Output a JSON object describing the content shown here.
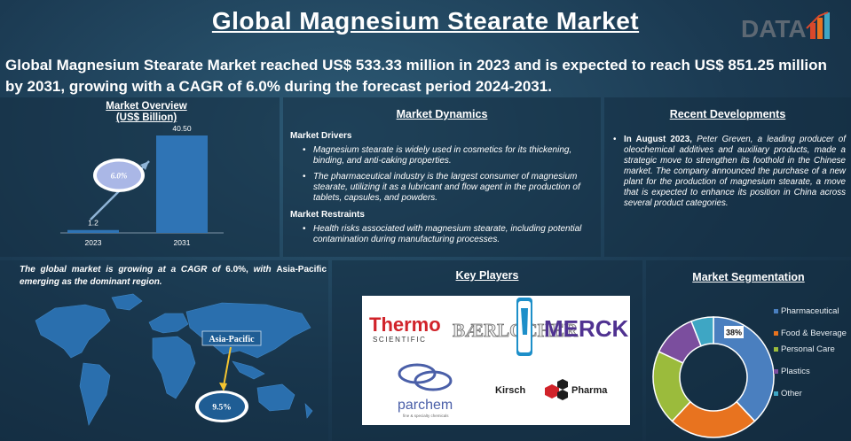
{
  "title": "Global Magnesium Stearate Market",
  "logo": {
    "text": "DATA"
  },
  "subtitle": "Global Magnesium Stearate Market reached US$ 533.33 million in 2023 and is expected to reach US$ 851.25 million by 2031, growing with a CAGR of 6.0% during the forecast period 2024-2031.",
  "overview": {
    "title_line1": "Market Overview",
    "title_line2": "(US$ Billion)",
    "cagr_badge": "6.0%",
    "chart_data": {
      "type": "bar",
      "categories": [
        "2023",
        "2031"
      ],
      "values": [
        1.2,
        40.5
      ],
      "value_labels": [
        "1.2",
        "40.50"
      ]
    }
  },
  "dynamics": {
    "title": "Market Dynamics",
    "drivers_heading": "Market Drivers",
    "drivers": [
      "Magnesium stearate is widely used in cosmetics for its thickening, binding, and anti-caking properties.",
      "The pharmaceutical industry is the largest consumer of magnesium stearate, utilizing it as a lubricant and flow agent in the production of tablets, capsules, and powders."
    ],
    "restraints_heading": "Market Restraints",
    "restraints": [
      "Health risks associated with magnesium stearate, including potential contamination during manufacturing processes."
    ]
  },
  "recent": {
    "title": "Recent Developments",
    "item_bold": "In August 2023,",
    "item_company": "Peter Greven,",
    "item_text": "a leading producer of oleochemical additives and auxiliary products, made a strategic move to strengthen its foothold in the Chinese market. The company announced the purchase of a new plant for the production of magnesium stearate, a move that is expected to enhance its position in China across several product categories."
  },
  "map": {
    "text_pre": "The global market is growing at a CAGR of",
    "text_cagr": "6.0%,",
    "text_mid": "with",
    "text_region": "Asia-Pacific",
    "text_post": "emerging as the dominant region.",
    "region_label": "Asia-Pacific",
    "region_value": "9.5%"
  },
  "players": {
    "title": "Key Players",
    "logos": {
      "thermo_1": "Thermo",
      "thermo_2": "SCIENTIFIC",
      "baerlocher": "BÆRLOCHER",
      "merck": "MERCK",
      "parchem": "parchem",
      "parchem_sub": "fine & specialty chemicals",
      "kirsch_1": "Kirsch",
      "kirsch_2": "Pharma"
    }
  },
  "segmentation": {
    "title": "Market Segmentation",
    "highlight_label": "38%",
    "chart_data": {
      "type": "pie",
      "categories": [
        "Pharmaceutical",
        "Food & Beverage",
        "Personal Care",
        "Plastics",
        "Other"
      ],
      "values": [
        38,
        24,
        20,
        12,
        6
      ],
      "colors": [
        "#4a7fbf",
        "#e8731f",
        "#9bbb3c",
        "#7b4e9e",
        "#3ea6c4"
      ]
    },
    "legend": [
      {
        "label": "Pharmaceutical",
        "color": "#4a7fbf"
      },
      {
        "label": "Food & Beverage",
        "color": "#e8731f"
      },
      {
        "label": "Personal Care",
        "color": "#9bbb3c"
      },
      {
        "label": "Plastics",
        "color": "#7b4e9e"
      },
      {
        "label": "Other",
        "color": "#3ea6c4"
      }
    ]
  }
}
